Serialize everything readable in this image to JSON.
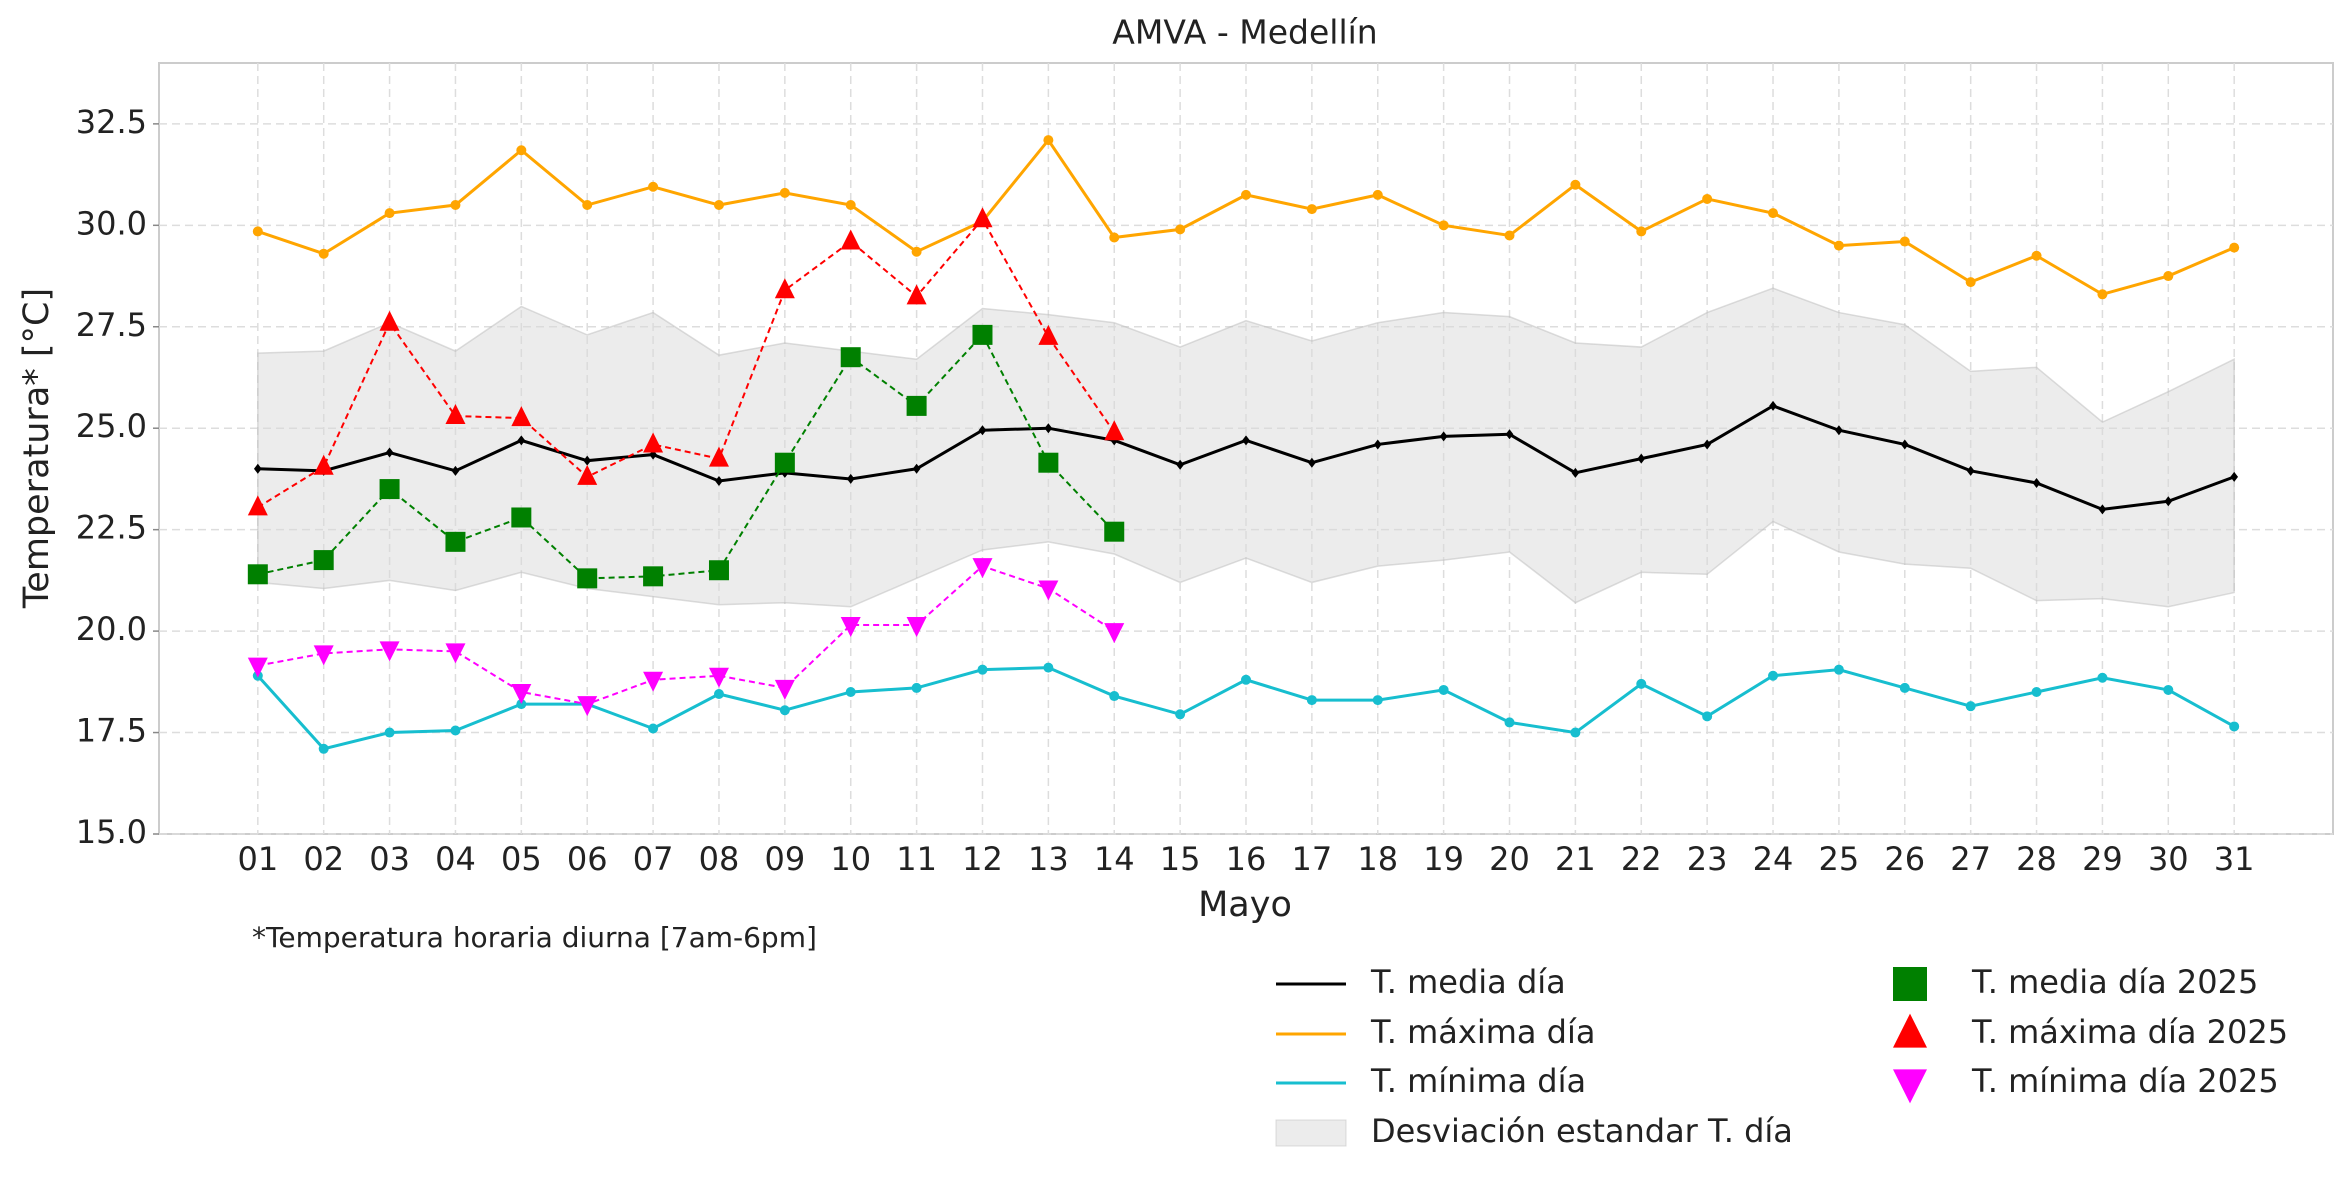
{
  "chart_data": {
    "type": "line",
    "title": "AMVA - Medellín",
    "x_label": "Mayo",
    "y_label": "Temperatura* [°C]",
    "footnote": "*Temperatura horaria diurna [7am-6pm]",
    "categories": [
      "01",
      "02",
      "03",
      "04",
      "05",
      "06",
      "07",
      "08",
      "09",
      "10",
      "11",
      "12",
      "13",
      "14",
      "15",
      "16",
      "17",
      "18",
      "19",
      "20",
      "21",
      "22",
      "23",
      "24",
      "25",
      "26",
      "27",
      "28",
      "29",
      "30",
      "31"
    ],
    "ylim": [
      15,
      34
    ],
    "yticks": [
      {
        "value": 15,
        "label": "15.0"
      },
      17.5,
      {
        "value": 20,
        "label": "20.0"
      },
      22.5,
      {
        "value": 25,
        "label": "25.0"
      },
      27.5,
      {
        "value": 30,
        "label": "30.0"
      },
      32.5
    ],
    "grid": true,
    "band": {
      "name": "Desviación estandar T. día",
      "color": "#d9d9d9",
      "upper": [
        26.85,
        26.9,
        27.6,
        26.9,
        28.0,
        27.3,
        27.85,
        26.8,
        27.1,
        26.9,
        26.7,
        27.95,
        27.8,
        27.6,
        27.0,
        27.65,
        27.15,
        27.6,
        27.85,
        27.75,
        27.1,
        27.0,
        27.85,
        28.45,
        27.85,
        27.55,
        26.4,
        26.5,
        25.15,
        25.9,
        26.7
      ],
      "lower": [
        21.2,
        21.05,
        21.25,
        21.0,
        21.45,
        21.05,
        20.85,
        20.65,
        20.7,
        20.6,
        21.3,
        22.0,
        22.2,
        21.9,
        21.2,
        21.8,
        21.2,
        21.6,
        21.75,
        21.95,
        20.7,
        21.45,
        21.4,
        22.7,
        21.95,
        21.65,
        21.55,
        20.75,
        20.8,
        20.6,
        20.95
      ]
    },
    "series": [
      {
        "name": "T. media día",
        "color": "#000000",
        "marker": "diamond",
        "linestyle": "solid",
        "values": [
          24.0,
          23.95,
          24.4,
          23.95,
          24.7,
          24.2,
          24.35,
          23.7,
          23.9,
          23.75,
          24.0,
          24.95,
          25.0,
          24.7,
          24.1,
          24.7,
          24.15,
          24.6,
          24.8,
          24.85,
          23.9,
          24.25,
          24.6,
          25.55,
          24.95,
          24.6,
          23.95,
          23.65,
          23.0,
          23.2,
          23.8
        ]
      },
      {
        "name": "T. máxima día",
        "color": "#ffa500",
        "marker": "circle",
        "linestyle": "solid",
        "values": [
          29.85,
          29.3,
          30.3,
          30.5,
          31.85,
          30.5,
          30.95,
          30.5,
          30.8,
          30.5,
          29.35,
          30.1,
          32.1,
          29.7,
          29.9,
          30.75,
          30.4,
          30.75,
          30.0,
          29.75,
          31.0,
          29.85,
          30.65,
          30.3,
          29.5,
          29.6,
          28.6,
          29.25,
          28.3,
          28.75,
          29.45
        ]
      },
      {
        "name": "T. mínima día",
        "color": "#17becf",
        "marker": "circle",
        "linestyle": "solid",
        "values": [
          18.9,
          17.1,
          17.5,
          17.55,
          18.2,
          18.2,
          17.6,
          18.45,
          18.05,
          18.5,
          18.6,
          19.05,
          19.1,
          18.4,
          17.95,
          18.8,
          18.3,
          18.3,
          18.55,
          17.75,
          17.5,
          18.7,
          17.9,
          18.9,
          19.05,
          18.6,
          18.15,
          18.5,
          18.85,
          18.55,
          17.65
        ]
      },
      {
        "name": "T. media día 2025",
        "color": "#008000",
        "marker": "square",
        "linestyle": "dashed",
        "values": [
          21.4,
          21.75,
          23.5,
          22.2,
          22.8,
          21.3,
          21.35,
          21.5,
          24.15,
          26.75,
          25.55,
          27.3,
          24.15,
          22.45,
          null,
          null,
          null,
          null,
          null,
          null,
          null,
          null,
          null,
          null,
          null,
          null,
          null,
          null,
          null,
          null,
          null
        ]
      },
      {
        "name": "T. máxima día 2025",
        "color": "#ff0000",
        "marker": "triangle-up",
        "linestyle": "dashed",
        "values": [
          23.05,
          24.05,
          27.6,
          25.3,
          25.25,
          23.8,
          24.6,
          24.25,
          28.4,
          29.6,
          28.25,
          30.15,
          27.25,
          24.9,
          null,
          null,
          null,
          null,
          null,
          null,
          null,
          null,
          null,
          null,
          null,
          null,
          null,
          null,
          null,
          null,
          null
        ]
      },
      {
        "name": "T. mínima día 2025",
        "color": "#ff00ff",
        "marker": "triangle-down",
        "linestyle": "dashed",
        "values": [
          19.15,
          19.45,
          19.55,
          19.5,
          18.5,
          18.2,
          18.8,
          18.9,
          18.6,
          20.15,
          20.15,
          21.6,
          21.05,
          20.0,
          null,
          null,
          null,
          null,
          null,
          null,
          null,
          null,
          null,
          null,
          null,
          null,
          null,
          null,
          null,
          null,
          null
        ]
      }
    ]
  }
}
